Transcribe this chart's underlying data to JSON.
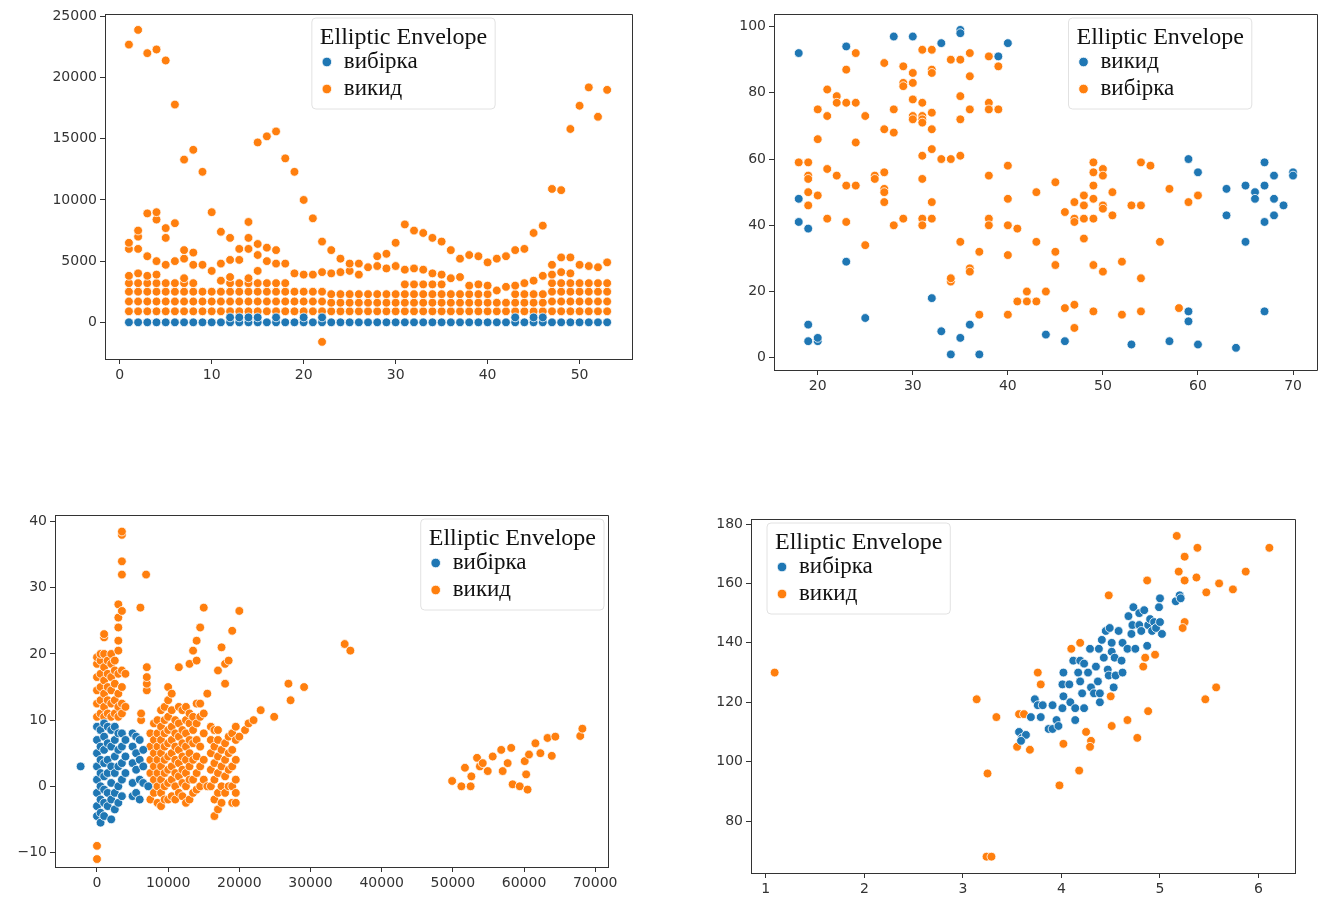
{
  "chart_data": [
    {
      "type": "scatter",
      "legend_title": "Elliptic Envelope",
      "legend": "top",
      "marker": "circle",
      "xlim": [
        -1.6,
        55.7
      ],
      "ylim": [
        -3000,
        25200
      ],
      "xticks": [
        0,
        10,
        20,
        30,
        40,
        50
      ],
      "yticks": [
        0,
        5000,
        10000,
        15000,
        20000,
        25000
      ],
      "series": [
        {
          "name": "вибірка",
          "color": "#1f77b4",
          "x": [
            1,
            2,
            3,
            4,
            5,
            6,
            7,
            8,
            9,
            10,
            11,
            12,
            13,
            14,
            15,
            16,
            17,
            18,
            19,
            20,
            21,
            22,
            23,
            24,
            25,
            26,
            27,
            28,
            29,
            30,
            31,
            32,
            33,
            34,
            35,
            36,
            37,
            38,
            39,
            40,
            41,
            42,
            43,
            44,
            45,
            46,
            47,
            48,
            49,
            50,
            51,
            52,
            53,
            12,
            13,
            14,
            15,
            17,
            20,
            22,
            43,
            45,
            46
          ],
          "values": [
            0,
            0,
            0,
            0,
            0,
            0,
            0,
            0,
            0,
            0,
            0,
            0,
            0,
            0,
            0,
            0,
            0,
            0,
            0,
            0,
            0,
            0,
            0,
            0,
            0,
            0,
            0,
            0,
            0,
            0,
            0,
            0,
            0,
            0,
            0,
            0,
            0,
            0,
            0,
            0,
            0,
            0,
            0,
            0,
            0,
            0,
            0,
            0,
            0,
            0,
            0,
            0,
            0,
            400,
            400,
            400,
            400,
            400,
            400,
            400,
            400,
            400,
            400
          ]
        },
        {
          "name": "викид",
          "color": "#ff7f0e",
          "x": [
            1,
            1,
            1,
            1,
            1,
            1,
            1,
            1,
            2,
            2,
            2,
            2,
            2,
            2,
            2,
            2,
            2,
            3,
            3,
            3,
            3,
            3,
            3,
            3,
            3,
            4,
            4,
            4,
            4,
            4,
            4,
            4,
            4,
            4,
            5,
            5,
            5,
            5,
            5,
            5,
            5,
            5,
            6,
            6,
            6,
            6,
            6,
            6,
            6,
            7,
            7,
            7,
            7,
            7,
            7,
            7,
            7,
            8,
            8,
            8,
            8,
            8,
            8,
            8,
            9,
            9,
            9,
            9,
            9,
            10,
            10,
            10,
            10,
            10,
            11,
            11,
            11,
            11,
            11,
            11,
            12,
            12,
            12,
            12,
            12,
            12,
            12,
            13,
            13,
            13,
            13,
            13,
            13,
            14,
            14,
            14,
            14,
            14,
            14,
            14,
            14,
            15,
            15,
            15,
            15,
            15,
            15,
            15,
            15,
            16,
            16,
            16,
            16,
            16,
            16,
            16,
            17,
            17,
            17,
            17,
            17,
            17,
            17,
            18,
            18,
            18,
            18,
            18,
            18,
            19,
            19,
            19,
            19,
            19,
            20,
            20,
            20,
            20,
            20,
            21,
            21,
            21,
            21,
            21,
            22,
            22,
            22,
            22,
            22,
            22,
            23,
            23,
            23,
            23,
            23,
            24,
            24,
            24,
            24,
            24,
            25,
            25,
            25,
            25,
            25,
            26,
            26,
            26,
            26,
            26,
            27,
            27,
            27,
            27,
            28,
            28,
            28,
            28,
            28,
            29,
            29,
            29,
            29,
            29,
            30,
            30,
            30,
            30,
            30,
            31,
            31,
            31,
            31,
            31,
            31,
            32,
            32,
            32,
            32,
            32,
            32,
            33,
            33,
            33,
            33,
            33,
            33,
            34,
            34,
            34,
            34,
            34,
            34,
            35,
            35,
            35,
            35,
            35,
            35,
            36,
            36,
            36,
            36,
            36,
            37,
            37,
            37,
            37,
            37,
            38,
            38,
            38,
            38,
            38,
            39,
            39,
            39,
            39,
            39,
            40,
            40,
            40,
            40,
            40,
            41,
            41,
            41,
            41,
            42,
            42,
            42,
            42,
            43,
            43,
            43,
            43,
            43,
            44,
            44,
            44,
            44,
            44,
            45,
            45,
            45,
            45,
            45,
            46,
            46,
            46,
            46,
            46,
            47,
            47,
            47,
            47,
            47,
            47,
            47,
            48,
            48,
            48,
            48,
            48,
            48,
            48,
            49,
            49,
            49,
            49,
            49,
            49,
            49,
            50,
            50,
            50,
            50,
            50,
            50,
            51,
            51,
            51,
            51,
            51,
            51,
            52,
            52,
            52,
            52,
            52,
            52,
            53,
            53,
            53,
            53,
            53,
            53
          ],
          "values": [
            900,
            1700,
            2500,
            3200,
            3800,
            6000,
            6500,
            22700,
            900,
            1700,
            2500,
            3200,
            4000,
            6000,
            7000,
            7500,
            23900,
            900,
            1700,
            2500,
            3200,
            3800,
            5400,
            8900,
            22000,
            900,
            1700,
            2500,
            3200,
            3900,
            5000,
            8400,
            9000,
            22300,
            900,
            1700,
            2500,
            3200,
            4700,
            6900,
            7700,
            21400,
            900,
            1700,
            2500,
            3200,
            5000,
            8100,
            17800,
            900,
            1700,
            2500,
            3200,
            3600,
            5200,
            5900,
            13300,
            900,
            1700,
            2500,
            3200,
            4700,
            5700,
            14100,
            900,
            1700,
            2500,
            4700,
            12300,
            900,
            1700,
            2500,
            4200,
            9000,
            900,
            1700,
            2500,
            3400,
            4800,
            7400,
            900,
            1700,
            2500,
            3200,
            3700,
            5100,
            6900,
            900,
            1700,
            2500,
            3200,
            5100,
            6000,
            900,
            1700,
            2500,
            3200,
            3600,
            6000,
            6900,
            8200,
            900,
            1700,
            2500,
            3200,
            4200,
            5500,
            6400,
            14700,
            900,
            1700,
            2500,
            3200,
            5000,
            6100,
            15200,
            900,
            1700,
            2500,
            3200,
            4800,
            5900,
            15600,
            900,
            1700,
            2500,
            3200,
            4800,
            13400,
            900,
            1700,
            2500,
            4000,
            12300,
            900,
            1700,
            2500,
            3900,
            10000,
            900,
            1700,
            2500,
            3900,
            8500,
            900,
            1700,
            2500,
            4100,
            6600,
            -1600,
            900,
            1600,
            2300,
            4000,
            5900,
            900,
            1600,
            2300,
            4100,
            5200,
            900,
            1600,
            2300,
            4200,
            4800,
            900,
            1600,
            2300,
            3900,
            4800,
            900,
            1600,
            2300,
            4500,
            900,
            1600,
            2300,
            4600,
            5400,
            900,
            1600,
            2300,
            4400,
            5600,
            900,
            1600,
            2300,
            4600,
            6500,
            900,
            1600,
            2300,
            3100,
            4300,
            8000,
            900,
            1600,
            2300,
            3100,
            4400,
            7500,
            900,
            1600,
            2300,
            3100,
            4300,
            7300,
            900,
            1600,
            2300,
            3100,
            4000,
            6900,
            900,
            1600,
            2300,
            3100,
            3900,
            6600,
            900,
            1600,
            2300,
            3600,
            5900,
            900,
            1600,
            2300,
            3700,
            5200,
            900,
            1600,
            2300,
            3000,
            5500,
            900,
            1600,
            2300,
            3100,
            5400,
            900,
            1600,
            2300,
            3000,
            4900,
            900,
            1600,
            2600,
            5200,
            900,
            1600,
            2900,
            5400,
            900,
            1600,
            2300,
            3000,
            5900,
            900,
            1600,
            2300,
            3200,
            6000,
            900,
            1600,
            2300,
            3400,
            7300,
            900,
            1600,
            2300,
            3800,
            7900,
            900,
            1700,
            2500,
            3200,
            3900,
            4700,
            10900,
            900,
            1700,
            2500,
            3200,
            4100,
            5300,
            10800,
            900,
            1700,
            2500,
            3200,
            4000,
            5300,
            15800,
            900,
            1700,
            2500,
            3200,
            4700,
            17700,
            900,
            1700,
            2500,
            3200,
            4600,
            19200,
            900,
            1700,
            2500,
            3200,
            4500,
            16800,
            900,
            1700,
            2500,
            3200,
            4900,
            19000
          ]
        }
      ]
    },
    {
      "type": "scatter",
      "legend_title": "Elliptic Envelope",
      "legend": "top right",
      "marker": "circle",
      "xlim": [
        15.4,
        72.5
      ],
      "ylim": [
        -3.7,
        103.8
      ],
      "xticks": [
        20,
        30,
        40,
        50,
        60,
        70
      ],
      "yticks": [
        0,
        20,
        40,
        60,
        80,
        100
      ],
      "series": [
        {
          "name": "викид",
          "color": "#1f77b4",
          "x": [
            18,
            23,
            28,
            30,
            33,
            35,
            35,
            39,
            40,
            18,
            18,
            19,
            23,
            19,
            19,
            20,
            20,
            25,
            32,
            33,
            34,
            35,
            36,
            37,
            44,
            46,
            53,
            57,
            59,
            60,
            59,
            59,
            60,
            63,
            63,
            64,
            65,
            65,
            66,
            66,
            67,
            67,
            67,
            67,
            68,
            68,
            68,
            69,
            70,
            70
          ],
          "values": [
            92,
            94,
            97,
            97,
            95,
            99,
            98,
            91,
            95,
            48,
            41,
            39,
            29,
            10,
            5,
            5,
            6,
            12,
            18,
            8,
            1,
            6,
            10,
            1,
            7,
            5,
            4,
            5,
            60,
            56,
            14,
            11,
            4,
            51,
            43,
            3,
            52,
            35,
            50,
            48,
            59,
            52,
            41,
            14,
            55,
            48,
            43,
            46,
            56,
            55
          ]
        },
        {
          "name": "вибірка",
          "color": "#ff7f0e",
          "x": [
            18,
            19,
            19,
            19,
            19,
            19,
            20,
            20,
            20,
            21,
            21,
            21,
            21,
            22,
            22,
            22,
            23,
            23,
            23,
            23,
            24,
            24,
            24,
            24,
            25,
            25,
            26,
            26,
            27,
            27,
            27,
            27,
            27,
            27,
            28,
            28,
            28,
            29,
            29,
            29,
            29,
            30,
            30,
            30,
            30,
            30,
            31,
            31,
            31,
            31,
            31,
            31,
            31,
            31,
            31,
            32,
            32,
            32,
            32,
            32,
            32,
            32,
            32,
            33,
            34,
            34,
            34,
            34,
            35,
            35,
            35,
            35,
            35,
            36,
            36,
            36,
            36,
            36,
            37,
            37,
            38,
            38,
            38,
            38,
            38,
            38,
            39,
            39,
            40,
            40,
            40,
            40,
            40,
            41,
            41,
            42,
            42,
            43,
            43,
            43,
            44,
            45,
            45,
            45,
            46,
            46,
            47,
            47,
            47,
            47,
            47,
            48,
            48,
            48,
            48,
            49,
            49,
            49,
            49,
            49,
            49,
            49,
            50,
            50,
            50,
            50,
            50,
            51,
            51,
            52,
            52,
            53,
            54,
            54,
            54,
            54,
            55,
            56,
            57,
            58,
            59,
            60
          ],
          "values": [
            59,
            59,
            55,
            54,
            50,
            46,
            49,
            66,
            75,
            73,
            81,
            57,
            42,
            79,
            77,
            55,
            87,
            77,
            52,
            41,
            92,
            77,
            65,
            52,
            73,
            34,
            55,
            54,
            89,
            69,
            56,
            51,
            50,
            47,
            75,
            68,
            40,
            88,
            83,
            82,
            42,
            86,
            83,
            78,
            73,
            72,
            93,
            77,
            73,
            72,
            71,
            61,
            54,
            42,
            40,
            93,
            87,
            86,
            74,
            69,
            63,
            47,
            42,
            60,
            90,
            60,
            23,
            24,
            90,
            79,
            72,
            61,
            35,
            92,
            85,
            75,
            27,
            26,
            32,
            13,
            91,
            77,
            75,
            55,
            42,
            40,
            88,
            75,
            58,
            48,
            40,
            31,
            13,
            39,
            17,
            20,
            17,
            50,
            35,
            17,
            20,
            53,
            32,
            28,
            44,
            15,
            47,
            42,
            41,
            16,
            9,
            49,
            46,
            42,
            36,
            59,
            56,
            52,
            48,
            42,
            28,
            14,
            57,
            55,
            46,
            45,
            26,
            50,
            43,
            29,
            13,
            46,
            59,
            46,
            24,
            14,
            58,
            35,
            51,
            15,
            47,
            49
          ]
        }
      ]
    },
    {
      "type": "scatter",
      "legend_title": "Elliptic Envelope",
      "legend": "top right",
      "marker": "circle",
      "xlim": [
        -5900,
        71800
      ],
      "ylim": [
        -12.2,
        41
      ],
      "xticks": [
        0,
        10000,
        20000,
        30000,
        40000,
        50000,
        60000,
        70000
      ],
      "yticks": [
        {
          "value": -10,
          "label": "−10"
        },
        0,
        10,
        20,
        30,
        40
      ],
      "series": [
        {
          "name": "вибірка",
          "color": "#1f77b4",
          "x": [
            -2300,
            0,
            0,
            0,
            0,
            0,
            0,
            0,
            0,
            500,
            500,
            500,
            500,
            500,
            500,
            500,
            500,
            1000,
            1000,
            1000,
            1000,
            1000,
            1000,
            1000,
            1000,
            1500,
            1500,
            1500,
            1500,
            1500,
            1500,
            2000,
            2000,
            2000,
            2000,
            2000,
            2000,
            2500,
            2500,
            2500,
            2500,
            2500,
            2500,
            3000,
            3000,
            3000,
            3000,
            3000,
            3500,
            3500,
            3500,
            3500,
            3500,
            4000,
            4000,
            4000,
            5000,
            5000,
            5000,
            5000,
            5000,
            5500,
            5500,
            5500,
            5500,
            6000,
            6000,
            6000,
            6000,
            6500,
            6500,
            6500,
            7200
          ],
          "values": [
            3,
            9,
            7,
            5,
            3,
            1,
            -1,
            -3,
            -4.5,
            8.5,
            6,
            4,
            2,
            0,
            -2,
            -4,
            -5.5,
            9.5,
            7.5,
            5.5,
            3.5,
            1.5,
            -0.5,
            -2.5,
            -4.5,
            9,
            6.5,
            4,
            2,
            -1,
            -3,
            8.5,
            6,
            3,
            0.5,
            -2,
            -5,
            9,
            7,
            4.5,
            2,
            -1,
            -3.5,
            8,
            5.5,
            3,
            0,
            -2.5,
            8,
            6,
            3.5,
            1,
            -1.5,
            7,
            4.5,
            2,
            8,
            6,
            3.5,
            0.5,
            -1.5,
            7.5,
            5,
            2.5,
            -1,
            7,
            4,
            1,
            -2,
            5.5,
            3,
            0.5,
            0
          ]
        },
        {
          "name": "викид",
          "color": "#ff7f0e",
          "x": [
            0,
            0,
            0,
            0,
            0,
            0,
            0,
            0,
            500,
            500,
            500,
            500,
            500,
            500,
            1000,
            1000,
            1000,
            1000,
            1000,
            1000,
            1000,
            1000,
            1500,
            1500,
            1500,
            1500,
            1500,
            2000,
            2000,
            2000,
            2000,
            2000,
            2000,
            2500,
            2500,
            2500,
            2500,
            2500,
            3000,
            3000,
            3000,
            3000,
            3000,
            3000,
            3000,
            3000,
            3000,
            3500,
            3500,
            3500,
            3500,
            3500,
            3500,
            3500,
            3500,
            3500,
            4000,
            4000,
            6100,
            6200,
            6200,
            6900,
            7000,
            7000,
            7000,
            7000,
            7500,
            7500,
            7500,
            7500,
            7500,
            7500,
            8000,
            8000,
            8000,
            8000,
            8000,
            8000,
            8500,
            8500,
            8500,
            8500,
            8500,
            8500,
            8500,
            9000,
            9000,
            9000,
            9000,
            9000,
            9000,
            9000,
            9000,
            9500,
            9500,
            9500,
            9500,
            9500,
            9500,
            9500,
            9500,
            10000,
            10000,
            10000,
            10000,
            10000,
            10000,
            10000,
            10000,
            10000,
            10500,
            10500,
            10500,
            10500,
            10500,
            10500,
            10500,
            10500,
            11000,
            11000,
            11000,
            11000,
            11000,
            11000,
            11000,
            11500,
            11500,
            11500,
            11500,
            11500,
            11500,
            11500,
            11500,
            12000,
            12000,
            12000,
            12000,
            12000,
            12000,
            12000,
            12500,
            12500,
            12500,
            12500,
            12500,
            12500,
            12500,
            12500,
            13000,
            13000,
            13000,
            13000,
            13000,
            13000,
            13000,
            13000,
            13500,
            13500,
            13500,
            13500,
            13500,
            13500,
            13500,
            14000,
            14000,
            14000,
            14000,
            14000,
            14000,
            14000,
            14000,
            14500,
            14500,
            14500,
            14500,
            14500,
            14500,
            15000,
            15000,
            15000,
            15000,
            15000,
            15500,
            15500,
            16000,
            16000,
            16000,
            16000,
            16000,
            16500,
            16500,
            16500,
            16500,
            16500,
            16500,
            17000,
            17000,
            17000,
            17000,
            17000,
            17000,
            17000,
            17500,
            17500,
            17500,
            17500,
            17500,
            18000,
            18000,
            18000,
            18000,
            18000,
            18000,
            18500,
            18500,
            18500,
            18500,
            18500,
            19000,
            19000,
            19000,
            19000,
            19000,
            19000,
            19500,
            19500,
            19500,
            19500,
            19500,
            19500,
            20000,
            20000,
            20800,
            21300,
            22000,
            23000,
            24900,
            26900,
            27200,
            29100,
            34800,
            35600,
            49900,
            51200,
            51700,
            52500,
            52600,
            53400,
            53800,
            54200,
            54900,
            55600,
            56800,
            57000,
            57700,
            58200,
            58400,
            59400,
            60100,
            60300,
            60500,
            60700,
            61600,
            62300,
            63300,
            63900,
            64400,
            67900,
            68200
          ],
          "values": [
            -9,
            -11,
            10.5,
            12.5,
            14.5,
            16.5,
            18.5,
            19.5,
            11,
            13,
            15,
            17,
            19,
            20,
            10.5,
            12,
            14,
            16,
            18,
            20,
            22.5,
            23,
            11,
            13,
            15,
            17,
            19,
            10.5,
            12.5,
            14.5,
            16.5,
            18.5,
            20,
            11,
            13,
            15.5,
            17.5,
            19,
            10.5,
            12,
            14,
            17,
            20.5,
            22,
            24,
            25.5,
            27.5,
            11,
            12.5,
            15,
            17.5,
            26.5,
            32,
            34,
            38,
            38.5,
            12,
            17,
            27,
            10,
            11,
            32,
            14.5,
            15.5,
            16.5,
            18,
            -2,
            0,
            2,
            4,
            6,
            8,
            -1,
            1,
            3,
            5,
            7,
            9.5,
            -2.5,
            0,
            2,
            4,
            6,
            8,
            10,
            -3,
            -1,
            1,
            3,
            5,
            7,
            9,
            11.5,
            -2,
            0,
            2,
            4,
            6,
            8,
            10,
            12,
            -2,
            0.5,
            2.5,
            4.5,
            6.5,
            8.5,
            10.5,
            13,
            15,
            -1.5,
            1,
            3,
            5,
            7,
            9,
            11.5,
            14,
            -2,
            0,
            2,
            4,
            6,
            8,
            10,
            -1,
            1.5,
            3.5,
            5.5,
            7.5,
            9.5,
            12,
            18,
            -1.5,
            0.5,
            2.5,
            4.5,
            6.5,
            8.5,
            11.5,
            -2.5,
            0,
            2,
            4,
            6,
            8,
            10,
            12,
            -2,
            1,
            3,
            5,
            7,
            9.5,
            11,
            18.5,
            -1,
            1,
            4,
            6.5,
            8.5,
            10.5,
            20.5,
            -0.5,
            2,
            4.5,
            7,
            9.5,
            12.5,
            19,
            22,
            0,
            3,
            6,
            10.5,
            12.5,
            24,
            1,
            4,
            8,
            11,
            27,
            0,
            14,
            0,
            2.5,
            5,
            7,
            9,
            -4.5,
            -2,
            1,
            3.5,
            6,
            8.5,
            -3.5,
            -1,
            2,
            4.5,
            7,
            8.5,
            17.5,
            -2.5,
            0,
            3,
            5.5,
            21,
            -1,
            1.5,
            4,
            6.5,
            15.5,
            18.5,
            0,
            2.5,
            5,
            7.5,
            19,
            -2.5,
            0,
            3,
            5.5,
            8,
            23.5,
            -2.5,
            -1,
            1,
            4,
            7,
            9,
            7.5,
            26.5,
            8.5,
            9.5,
            10,
            11.5,
            10.5,
            15.5,
            13,
            15,
            21.5,
            20.5,
            0.8,
            0,
            2.8,
            0,
            1.5,
            4.3,
            3,
            3.5,
            2.3,
            4.5,
            5.5,
            2.3,
            3.5,
            5.8,
            0.3,
            0,
            3.8,
            1.8,
            -0.5,
            4.8,
            6.5,
            5,
            7.3,
            4.6,
            7.5,
            7.6,
            8.7
          ]
        }
      ]
    },
    {
      "type": "scatter",
      "legend_title": "Elliptic Envelope",
      "legend": "top left",
      "marker": "circle",
      "xlim": [
        0.85,
        6.37
      ],
      "ylim": [
        62.5,
        181.7
      ],
      "xticks": [
        1,
        2,
        3,
        4,
        5,
        6
      ],
      "yticks": [
        80,
        100,
        120,
        140,
        160,
        180
      ],
      "series": [
        {
          "name": "вибірка",
          "color": "#1f77b4",
          "x": [
            3.57,
            3.6,
            3.64,
            3.59,
            3.69,
            3.73,
            3.76,
            3.81,
            3.79,
            3.87,
            3.91,
            3.91,
            3.95,
            3.97,
            4.01,
            4.02,
            4.02,
            4.01,
            4.08,
            4.09,
            4.14,
            4.14,
            4.12,
            4.17,
            4.19,
            4.19,
            4.21,
            4.23,
            4.23,
            4.27,
            4.29,
            4.3,
            4.33,
            4.35,
            4.37,
            4.38,
            4.39,
            4.39,
            4.41,
            4.43,
            4.45,
            4.47,
            4.48,
            4.49,
            4.51,
            4.51,
            4.53,
            4.54,
            4.55,
            4.58,
            4.61,
            4.62,
            4.62,
            4.67,
            4.68,
            4.71,
            4.72,
            4.73,
            4.75,
            4.79,
            4.79,
            4.81,
            4.84,
            4.87,
            4.88,
            4.9,
            4.92,
            4.94,
            4.96,
            4.99,
            5.0,
            5.0,
            5.02,
            5.16,
            5.2,
            5.21
          ],
          "values": [
            110,
            108,
            109,
            107,
            115,
            121,
            119,
            119,
            115,
            111,
            111,
            119,
            114,
            112,
            118,
            122,
            130,
            126,
            126,
            120,
            114,
            118,
            134,
            130,
            134,
            127,
            123,
            118,
            133,
            130,
            138,
            125,
            123,
            132,
            127,
            138,
            120,
            123,
            141,
            135,
            144,
            131,
            129,
            145,
            140,
            137,
            125,
            135,
            129,
            144,
            134,
            130,
            140,
            138,
            149,
            143,
            146,
            152,
            138,
            150,
            146,
            144,
            151,
            139,
            146,
            148,
            144,
            147,
            145,
            152,
            147,
            155,
            143,
            154,
            156,
            155
          ]
        },
        {
          "name": "викид",
          "color": "#ff7f0e",
          "x": [
            1.09,
            3.14,
            3.25,
            3.24,
            3.29,
            3.34,
            3.55,
            3.57,
            3.62,
            3.68,
            3.76,
            3.79,
            3.98,
            4.02,
            4.1,
            4.19,
            4.18,
            4.25,
            4.3,
            4.29,
            4.48,
            4.5,
            4.51,
            4.67,
            4.77,
            4.83,
            4.85,
            4.87,
            4.88,
            4.95,
            5.17,
            5.19,
            5.25,
            5.25,
            5.25,
            5.23,
            5.38,
            5.37,
            5.46,
            5.47,
            5.57,
            5.6,
            5.74,
            5.87,
            6.11
          ],
          "values": [
            130,
            121,
            96,
            68,
            68,
            115,
            105,
            116,
            116,
            104,
            130,
            126,
            92,
            106,
            138,
            140,
            97,
            110,
            107,
            105,
            156,
            122,
            112,
            114,
            108,
            132,
            135,
            161,
            117,
            136,
            176,
            164,
            169,
            161,
            147,
            145,
            172,
            162,
            121,
            157,
            125,
            160,
            158,
            164,
            172
          ]
        }
      ]
    }
  ]
}
